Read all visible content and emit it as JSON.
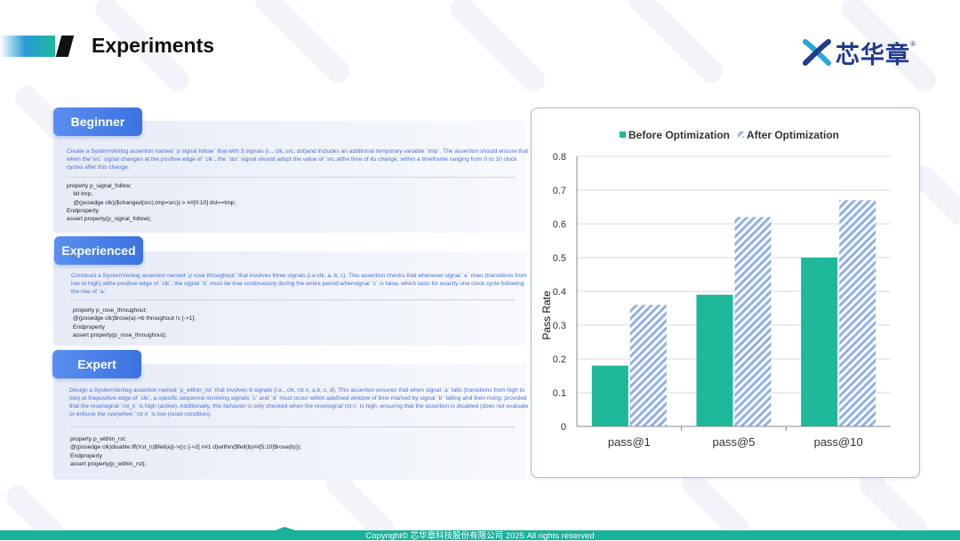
{
  "header": {
    "title": "Experiments"
  },
  "logo": {
    "text": "芯华章",
    "registered": "®"
  },
  "panels": [
    {
      "tag": "Beginner",
      "description": "Create a SystemVerilog assertion named `p signal follow` that with 3 signals (i.., clk, src, dst)and includes an additional temporary variable `tmp`. The assertion should ensure that when the`src` signal changes at the positive edge of `clk`, the `dst` signal should adopt the value of `src atthe time of its change, within a timeframe ranging from 0 to 10 clock cycles after this change.",
      "code": [
        "property p_signal_follow;",
        "    bit tmp;",
        "    @(posedge clk)($changed(src),tmp=src)|-> ##[0:10] dst==tmp;",
        "Endproperty",
        "assert property(p_signal_follow);"
      ]
    },
    {
      "tag": "Experienced",
      "description": "Construct a SystemVerilog assertion named `p rose throughout` that involves three signals (i.e.clk, a, b, c). This assertion checks that whenever signal `a` rises (transitions from low to high) atthe positive edge of `clk`, the signal `b` must be true continuously during the entire period whensignal `c` is false, which lasts for exactly one clock cycle following the rise of `a`.",
      "code": [
        "property p_rose_throughout;",
        "@(posedge clk)$rose(a)->b throughout !c [->1];",
        "Endproperty",
        "assert property(p_rose_throughout);"
      ]
    },
    {
      "tag": "Expert",
      "description": "Design a SystemVerilog assertion named `p_within_rst` that involves 6 signals (i.e., clk, rst n, a,b, c, d). This assertion ensures that when signal `a` falls (transitions from high to low) at thepositive edge of `clk`, a specific sequence involving signals `c` and `d` must occur within adefined window of time marked by signal `b` falling and then rising, provided that the resetsignal `rst_n` is high (active). Additionally, this behavior is only checked when the resetsignal`rst n` is high, ensuring that the assertion is disabled (does not evaluate or enforce the rule)when `rst n` is low (reset condition).",
      "code": [
        "property p_within_rst;",
        "@(posedge clk)disable iff(!rst_n)$fell(a)|->((c [->2] ##1 d)within($fell(b)##[5:10]$rose(b)));",
        "Endproperty",
        "assert property(p_within_rst);"
      ]
    }
  ],
  "chart_data": {
    "type": "bar",
    "categories": [
      "pass@1",
      "pass@5",
      "pass@10"
    ],
    "series": [
      {
        "name": "Before Optimization",
        "values": [
          0.18,
          0.39,
          0.5
        ],
        "color": "#1db99a",
        "pattern": "solid"
      },
      {
        "name": "After Optimization",
        "values": [
          0.36,
          0.62,
          0.67
        ],
        "color": "#9bb8e8",
        "pattern": "hatched"
      }
    ],
    "ylabel": "Pass Rate",
    "xlabel": "",
    "ylim": [
      0,
      0.8
    ],
    "yticks": [
      "0",
      "0.1",
      "0.2",
      "0.3",
      "0.4",
      "0.5",
      "0.6",
      "0.7",
      "0.8"
    ],
    "grid": true,
    "legend_position": "top"
  },
  "footer": {
    "text": "Copyright© 芯华章科技股份有限公司 2025 All rights reserved"
  }
}
